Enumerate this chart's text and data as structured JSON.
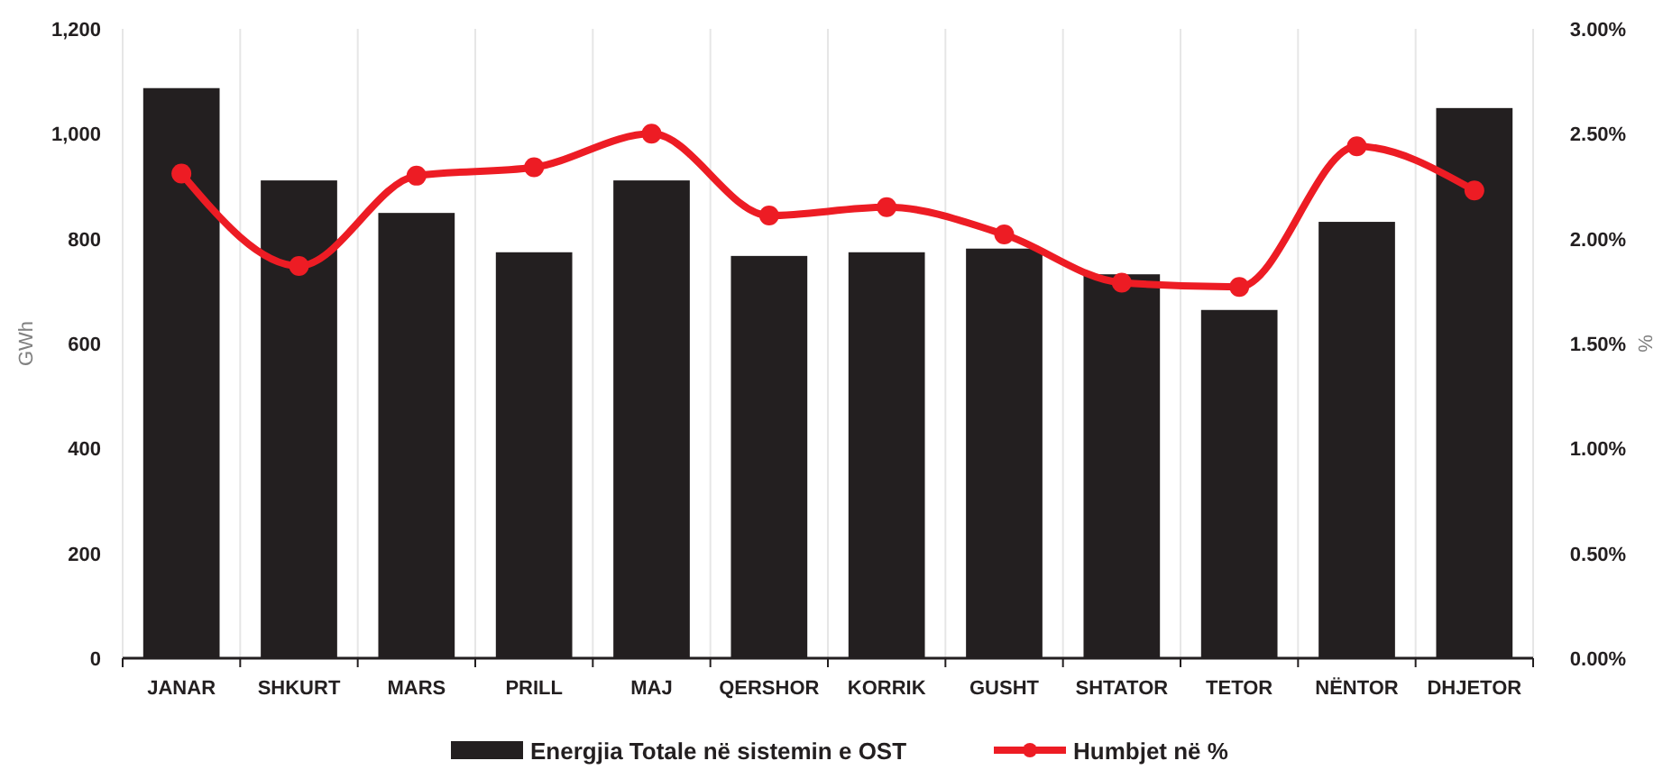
{
  "chart_data": {
    "type": "bar",
    "ylabel": "GWh",
    "y2label": "%",
    "categories": [
      "JANAR",
      "SHKURT",
      "MARS",
      "PRILL",
      "MAJ",
      "QERSHOR",
      "KORRIK",
      "GUSHT",
      "SHTATOR",
      "TETOR",
      "NËNTOR",
      "DHJETOR"
    ],
    "series": [
      {
        "name": "Energjia Totale në sistemin e OST",
        "color": "#231f20",
        "values": [
          1087,
          911,
          849,
          774,
          911,
          767,
          774,
          781,
          732,
          664,
          832,
          1049
        ]
      },
      {
        "name": "Humbjet në %",
        "type": "line",
        "axis": "y2",
        "color": "#ed1c24",
        "marker": "circle",
        "values": [
          2.31,
          1.87,
          2.3,
          2.34,
          2.5,
          2.11,
          2.15,
          2.02,
          1.79,
          1.77,
          2.44,
          2.23
        ]
      }
    ],
    "ylim": [
      0,
      1200
    ],
    "yticks": [
      {
        "value": 0,
        "label": "0"
      },
      {
        "value": 200,
        "label": "200"
      },
      {
        "value": 400,
        "label": "400"
      },
      {
        "value": 600,
        "label": "600"
      },
      {
        "value": 800,
        "label": "800"
      },
      {
        "value": 1000,
        "label": "1,000"
      },
      {
        "value": 1200,
        "label": "1,200"
      }
    ],
    "y2lim": [
      0,
      3
    ],
    "y2ticks": [
      {
        "value": 0,
        "label": "0.00%"
      },
      {
        "value": 0.5,
        "label": "0.50%"
      },
      {
        "value": 1,
        "label": "1.00%"
      },
      {
        "value": 1.5,
        "label": "1.50%"
      },
      {
        "value": 2,
        "label": "2.00%"
      },
      {
        "value": 2.5,
        "label": "2.50%"
      },
      {
        "value": 3,
        "label": "3.00%"
      }
    ],
    "grid": "x",
    "legend": "bottom"
  }
}
